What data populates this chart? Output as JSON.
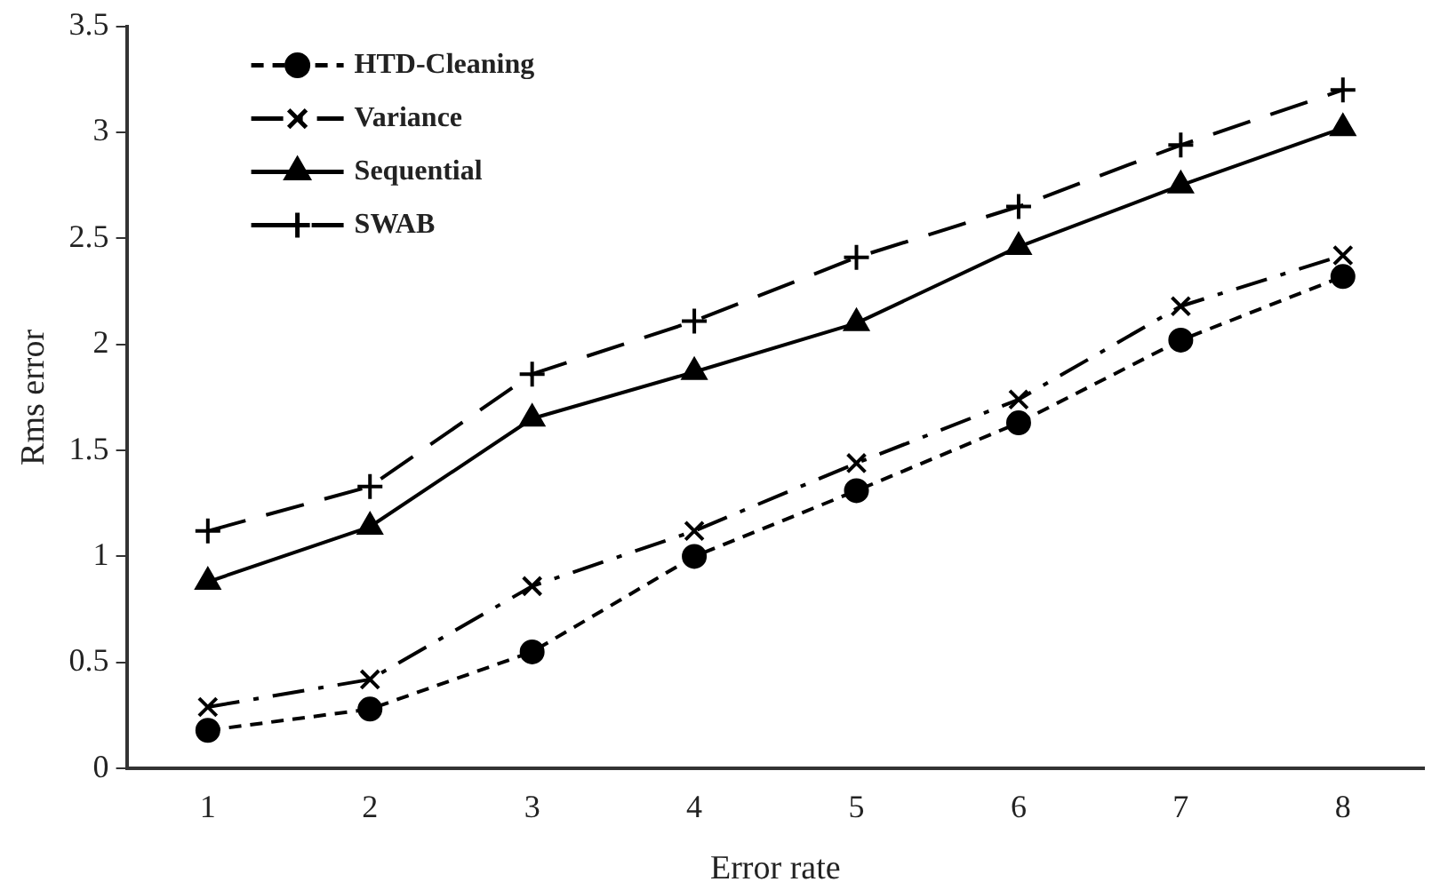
{
  "chart_data": {
    "type": "line",
    "xlabel": "Error rate",
    "ylabel": "Rms error",
    "categories": [
      "1",
      "2",
      "3",
      "4",
      "5",
      "6",
      "7",
      "8"
    ],
    "ylim": [
      0,
      3.5
    ],
    "yticks": [
      0,
      0.5,
      1,
      1.5,
      2,
      2.5,
      3,
      3.5
    ],
    "grid": false,
    "legend": "top left",
    "series": [
      {
        "name": "HTD-Cleaning",
        "color": "#000000",
        "marker": "circle",
        "line_style": "dashed",
        "values": [
          0.18,
          0.28,
          0.55,
          1.0,
          1.31,
          1.63,
          2.02,
          2.32
        ]
      },
      {
        "name": "Variance",
        "color": "#000000",
        "marker": "x",
        "line_style": "dashdot",
        "values": [
          0.29,
          0.42,
          0.86,
          1.12,
          1.44,
          1.74,
          2.18,
          2.42
        ]
      },
      {
        "name": "Sequential",
        "color": "#000000",
        "marker": "triangle",
        "line_style": "solid",
        "values": [
          0.88,
          1.14,
          1.65,
          1.87,
          2.1,
          2.46,
          2.75,
          3.02
        ]
      },
      {
        "name": "SWAB",
        "color": "#000000",
        "marker": "cross",
        "line_style": "longdash",
        "values": [
          1.12,
          1.33,
          1.86,
          2.11,
          2.41,
          2.65,
          2.94,
          3.2
        ]
      }
    ]
  }
}
